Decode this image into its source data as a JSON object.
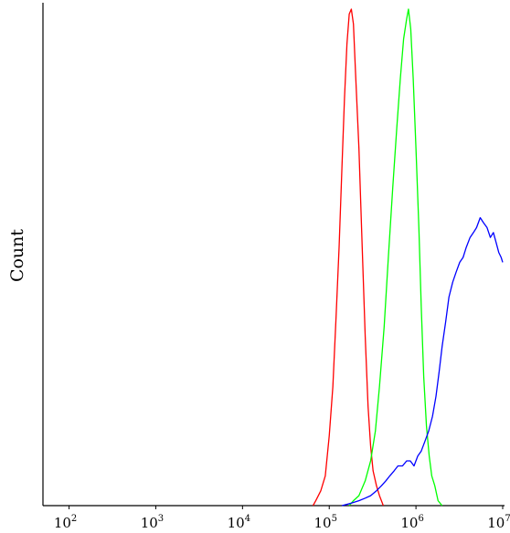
{
  "chart_data": {
    "type": "line",
    "title": "",
    "xlabel": "",
    "ylabel": "Count",
    "x_scale": "log",
    "xlim": [
      50,
      10000000
    ],
    "ylim": [
      0,
      100
    ],
    "x_ticks": [
      {
        "base": "10",
        "exp": "2",
        "value": 100
      },
      {
        "base": "10",
        "exp": "3",
        "value": 1000
      },
      {
        "base": "10",
        "exp": "4",
        "value": 10000
      },
      {
        "base": "10",
        "exp": "5",
        "value": 100000
      },
      {
        "base": "10",
        "exp": "6",
        "value": 1000000
      },
      {
        "base": "10",
        "exp": "7",
        "value": 10000000
      }
    ],
    "grid": false,
    "legend": "none",
    "series": [
      {
        "color": "#ff0000",
        "points": [
          [
            65000,
            0
          ],
          [
            70000,
            1
          ],
          [
            80000,
            3
          ],
          [
            90000,
            6
          ],
          [
            100000,
            14
          ],
          [
            110000,
            24
          ],
          [
            120000,
            38
          ],
          [
            130000,
            52
          ],
          [
            140000,
            68
          ],
          [
            150000,
            82
          ],
          [
            160000,
            93
          ],
          [
            170000,
            99
          ],
          [
            180000,
            100
          ],
          [
            190000,
            97
          ],
          [
            200000,
            88
          ],
          [
            220000,
            72
          ],
          [
            240000,
            52
          ],
          [
            260000,
            34
          ],
          [
            280000,
            20
          ],
          [
            300000,
            12
          ],
          [
            320000,
            7
          ],
          [
            350000,
            4
          ],
          [
            380000,
            2
          ],
          [
            420000,
            0
          ]
        ]
      },
      {
        "color": "#00ff00",
        "points": [
          [
            170000,
            0
          ],
          [
            190000,
            1
          ],
          [
            220000,
            2
          ],
          [
            260000,
            5
          ],
          [
            300000,
            9
          ],
          [
            340000,
            15
          ],
          [
            380000,
            24
          ],
          [
            430000,
            36
          ],
          [
            480000,
            50
          ],
          [
            540000,
            64
          ],
          [
            600000,
            76
          ],
          [
            660000,
            86
          ],
          [
            720000,
            94
          ],
          [
            780000,
            98
          ],
          [
            820000,
            100
          ],
          [
            870000,
            96
          ],
          [
            930000,
            86
          ],
          [
            1000000,
            72
          ],
          [
            1080000,
            56
          ],
          [
            1150000,
            40
          ],
          [
            1230000,
            26
          ],
          [
            1320000,
            16
          ],
          [
            1420000,
            10
          ],
          [
            1520000,
            6
          ],
          [
            1650000,
            4
          ],
          [
            1800000,
            1
          ],
          [
            2000000,
            0
          ]
        ]
      },
      {
        "color": "#0000ff",
        "points": [
          [
            140000,
            0
          ],
          [
            180000,
            0.5
          ],
          [
            220000,
            1
          ],
          [
            260000,
            1.5
          ],
          [
            300000,
            2
          ],
          [
            350000,
            3
          ],
          [
            400000,
            4
          ],
          [
            450000,
            5
          ],
          [
            500000,
            6
          ],
          [
            560000,
            7
          ],
          [
            620000,
            8
          ],
          [
            700000,
            8
          ],
          [
            780000,
            9
          ],
          [
            860000,
            9
          ],
          [
            950000,
            8
          ],
          [
            1050000,
            10
          ],
          [
            1150000,
            11
          ],
          [
            1270000,
            13
          ],
          [
            1400000,
            15
          ],
          [
            1550000,
            18
          ],
          [
            1700000,
            22
          ],
          [
            1850000,
            27
          ],
          [
            2000000,
            32
          ],
          [
            2200000,
            37
          ],
          [
            2400000,
            42
          ],
          [
            2650000,
            45
          ],
          [
            2900000,
            47
          ],
          [
            3200000,
            49
          ],
          [
            3500000,
            50
          ],
          [
            3800000,
            52
          ],
          [
            4200000,
            54
          ],
          [
            4600000,
            55
          ],
          [
            5000000,
            56
          ],
          [
            5500000,
            58
          ],
          [
            6000000,
            57
          ],
          [
            6600000,
            56
          ],
          [
            7200000,
            54
          ],
          [
            7800000,
            55
          ],
          [
            8400000,
            53
          ],
          [
            9000000,
            51
          ],
          [
            9600000,
            50
          ],
          [
            10000000,
            49
          ]
        ]
      }
    ]
  }
}
